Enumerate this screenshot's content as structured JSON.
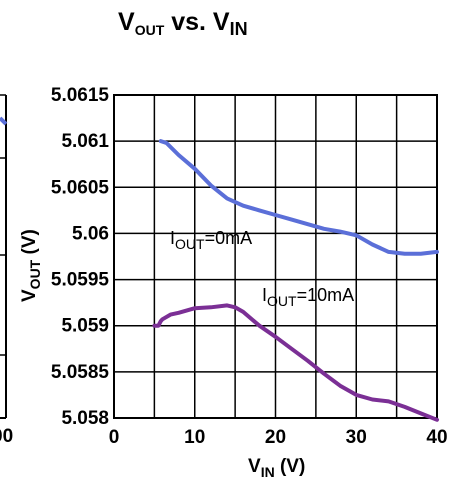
{
  "chart_data": {
    "type": "line",
    "title": {
      "main": "V",
      "sub1": "OUT",
      "mid": " vs. V",
      "sub2": "IN"
    },
    "xlabel": {
      "main": "V",
      "sub": "IN",
      "unit": " (V)"
    },
    "ylabel": {
      "main": "V",
      "sub": "OUT",
      "unit": " (V)"
    },
    "xlim": [
      0,
      40
    ],
    "ylim": [
      5.058,
      5.0615
    ],
    "x_ticks": [
      "0",
      "10",
      "20",
      "30",
      "40"
    ],
    "y_ticks": [
      "5.058",
      "5.0585",
      "5.059",
      "5.0595",
      "5.06",
      "5.0605",
      "5.061",
      "5.0615"
    ],
    "grid": true,
    "series": [
      {
        "name": {
          "main": "I",
          "sub": "OUT",
          "rest": "=0mA"
        },
        "color": "#5b6fd8",
        "x": [
          5.8,
          6.5,
          8,
          10,
          12,
          14,
          16,
          18,
          20,
          22,
          24,
          26,
          28,
          30,
          32,
          34,
          36,
          38,
          40
        ],
        "y": [
          5.061,
          5.06098,
          5.06085,
          5.0607,
          5.06052,
          5.06038,
          5.0603,
          5.06025,
          5.0602,
          5.06015,
          5.0601,
          5.06005,
          5.06002,
          5.05998,
          5.05988,
          5.0598,
          5.05978,
          5.05978,
          5.0598
        ]
      },
      {
        "name": {
          "main": "I",
          "sub": "OUT",
          "rest": "=10mA"
        },
        "color": "#7b2f95",
        "x": [
          5,
          5.5,
          5.8,
          6,
          7,
          8,
          10,
          12,
          14,
          15,
          16,
          18,
          20,
          22,
          24,
          26,
          28,
          30,
          32,
          34,
          36,
          38,
          40
        ],
        "y": [
          5.059,
          5.059,
          5.05905,
          5.05907,
          5.05912,
          5.05914,
          5.05919,
          5.0592,
          5.05922,
          5.0592,
          5.05915,
          5.059,
          5.05888,
          5.05875,
          5.05862,
          5.05848,
          5.05835,
          5.05825,
          5.0582,
          5.05818,
          5.05812,
          5.05805,
          5.05798
        ]
      }
    ]
  }
}
